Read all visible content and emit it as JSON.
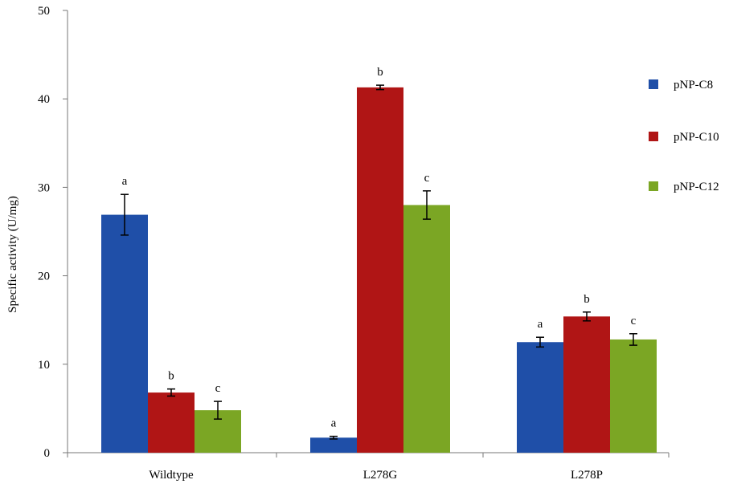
{
  "chart_data": {
    "type": "bar",
    "title": "",
    "xlabel": "",
    "ylabel": "Specific activity (U/mg)",
    "ylim": [
      0,
      50
    ],
    "yticks": [
      0,
      10,
      20,
      30,
      40,
      50
    ],
    "grid": false,
    "legend_position": "right",
    "categories": [
      "Wildtype",
      "L278G",
      "L278P"
    ],
    "series": [
      {
        "name": "pNP-C8",
        "color": "#1f4fa8",
        "values": [
          26.9,
          1.7,
          12.5
        ],
        "errors": [
          2.3,
          0.15,
          0.55
        ],
        "labels": [
          "a",
          "a",
          "a"
        ]
      },
      {
        "name": "pNP-C10",
        "color": "#b01515",
        "values": [
          6.8,
          41.3,
          15.4
        ],
        "errors": [
          0.4,
          0.25,
          0.5
        ],
        "labels": [
          "b",
          "b",
          "b"
        ]
      },
      {
        "name": "pNP-C12",
        "color": "#7ba624",
        "values": [
          4.8,
          28.0,
          12.8
        ],
        "errors": [
          1.0,
          1.6,
          0.65
        ],
        "labels": [
          "c",
          "c",
          "c"
        ]
      }
    ]
  }
}
